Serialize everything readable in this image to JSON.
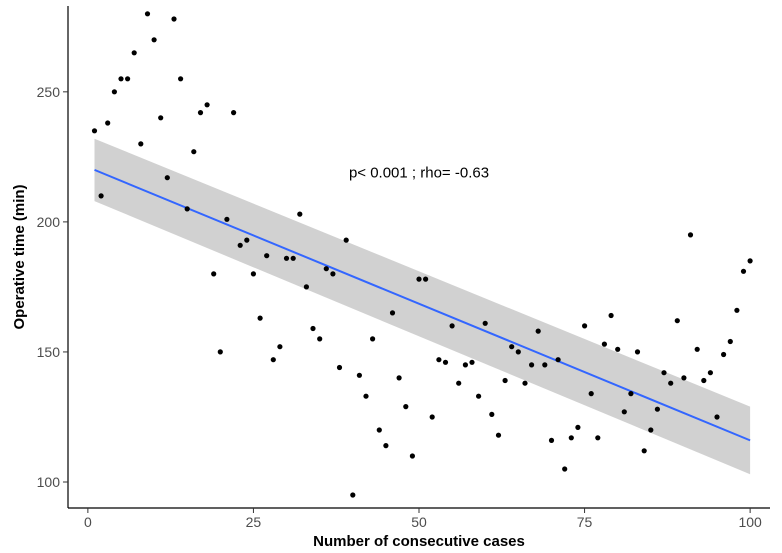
{
  "chart_data": {
    "type": "scatter",
    "title": "",
    "xlabel": "Number of consecutive cases",
    "ylabel": "Operative time (min)",
    "xlim": [
      -3,
      103
    ],
    "ylim": [
      90,
      283
    ],
    "x_ticks": [
      0,
      25,
      50,
      75,
      100
    ],
    "x_tick_labels": [
      "0",
      "25",
      "50",
      "75",
      "100"
    ],
    "y_ticks": [
      100,
      150,
      200,
      250
    ],
    "y_tick_labels": [
      "100",
      "150",
      "200",
      "250"
    ],
    "grid": false,
    "annotation": "p< 0.001 ; rho= -0.63",
    "annotation_x": 50,
    "annotation_y": 219,
    "regression": {
      "x": [
        1,
        100
      ],
      "y": [
        220,
        116
      ],
      "band_upper": [
        232,
        129
      ],
      "band_lower": [
        208,
        103
      ]
    },
    "points": {
      "x": [
        1,
        2,
        3,
        4,
        5,
        6,
        7,
        8,
        9,
        10,
        11,
        12,
        13,
        14,
        15,
        16,
        17,
        18,
        19,
        20,
        21,
        22,
        23,
        24,
        25,
        26,
        27,
        28,
        29,
        30,
        31,
        32,
        33,
        34,
        35,
        36,
        37,
        38,
        39,
        40,
        41,
        42,
        43,
        44,
        45,
        46,
        47,
        48,
        49,
        50,
        51,
        52,
        53,
        54,
        55,
        56,
        57,
        58,
        59,
        60,
        61,
        62,
        63,
        64,
        65,
        66,
        67,
        68,
        69,
        70,
        71,
        72,
        73,
        74,
        75,
        76,
        77,
        78,
        79,
        80,
        81,
        82,
        83,
        84,
        85,
        86,
        87,
        88,
        89,
        90,
        91,
        92,
        93,
        94,
        95,
        96,
        97,
        98,
        99,
        100
      ],
      "y": [
        235,
        210,
        238,
        250,
        255,
        255,
        265,
        230,
        280,
        270,
        240,
        217,
        278,
        255,
        205,
        227,
        242,
        245,
        180,
        150,
        201,
        242,
        191,
        193,
        180,
        163,
        187,
        147,
        152,
        186,
        186,
        203,
        175,
        159,
        155,
        182,
        180,
        144,
        193,
        95,
        141,
        133,
        155,
        120,
        114,
        165,
        140,
        129,
        110,
        178,
        178,
        125,
        147,
        146,
        160,
        138,
        145,
        146,
        133,
        161,
        126,
        118,
        139,
        152,
        150,
        138,
        145,
        158,
        145,
        116,
        147,
        105,
        117,
        121,
        160,
        134,
        117,
        153,
        164,
        151,
        127,
        134,
        150,
        112,
        120,
        128,
        142,
        138,
        162,
        140,
        195,
        151,
        139,
        142,
        125,
        149,
        154,
        166,
        181,
        185
      ]
    },
    "point_color": "#000000",
    "line_color": "#3366ff",
    "band_color": "#bebebe"
  }
}
